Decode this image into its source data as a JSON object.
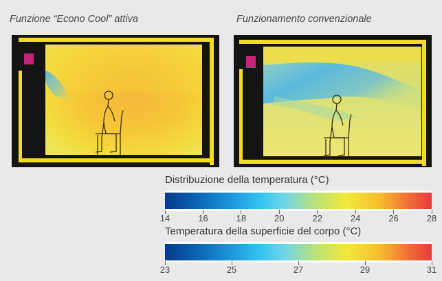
{
  "panels": {
    "left": {
      "caption": "Funzione “Econo Cool” attiva"
    },
    "right": {
      "caption": "Funzionamento convenzionale"
    }
  },
  "scales": [
    {
      "title": "Distribuzione della temperatura (°C)",
      "ticks": [
        "14",
        "16",
        "18",
        "20",
        "22",
        "24",
        "26",
        "28"
      ]
    },
    {
      "title": "Temperatura della superficie del corpo (°C)",
      "ticks": [
        "23",
        "25",
        "27",
        "29",
        "31"
      ]
    }
  ],
  "colors": {
    "background": "#e9e9eb",
    "frame": "#141414",
    "wall": "#f3dc1e",
    "accent_unit": "#c8237a"
  }
}
